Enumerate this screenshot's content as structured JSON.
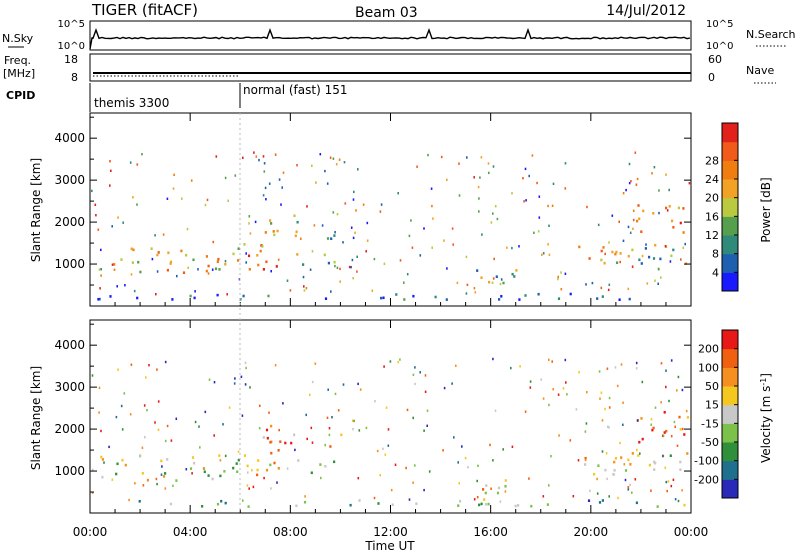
{
  "header": {
    "radar": "TIGER (fitACF)",
    "beam": "Beam 03",
    "date": "14/Jul/2012"
  },
  "top_panels": {
    "nsky": {
      "label": "N.Sky",
      "ticks": [
        "10^5",
        "10^0"
      ]
    },
    "nsearch": {
      "label": "N.Search",
      "ticks": [
        "10^5",
        "10^0"
      ]
    },
    "freq": {
      "label": "Freq.",
      "unit": "[MHz]",
      "ticks": [
        "18",
        "8"
      ]
    },
    "nave": {
      "label": "Nave",
      "ticks": [
        "60",
        "0"
      ]
    },
    "cpid": {
      "label": "CPID",
      "segments": [
        {
          "start_hr": 0,
          "end_hr": 6,
          "text": "themis 3300"
        },
        {
          "start_hr": 6,
          "end_hr": 24,
          "text": "normal (fast) 151"
        }
      ]
    }
  },
  "x_axis": {
    "title": "Time UT",
    "ticks": [
      "00:00",
      "04:00",
      "08:00",
      "12:00",
      "16:00",
      "20:00",
      "00:00"
    ]
  },
  "chart_data": [
    {
      "type": "heatmap",
      "title": "",
      "xlabel": "",
      "ylabel": "Slant Range [km]",
      "xlim_hr": [
        0,
        24
      ],
      "ylim": [
        0,
        4600
      ],
      "yticks": [
        "1000",
        "2000",
        "3000",
        "4000"
      ],
      "colorbar": {
        "label": "Power [dB]",
        "ticks": [
          "4",
          "8",
          "12",
          "16",
          "20",
          "24",
          "28"
        ],
        "colors": [
          "#1a1aff",
          "#1f5fb0",
          "#2f8a7a",
          "#56a04d",
          "#b9c940",
          "#f2a326",
          "#f07d10",
          "#f05a1a",
          "#e2211c"
        ]
      },
      "regions": [
        {
          "t0": 0.4,
          "t1": 6.1,
          "r0": 800,
          "r1": 1420,
          "level": 0.62
        },
        {
          "t0": 6.1,
          "t1": 7.6,
          "r0": 900,
          "r1": 1900,
          "level": 0.78
        },
        {
          "t0": 7.0,
          "t1": 8.4,
          "r0": 1600,
          "r1": 2300,
          "level": 0.45
        },
        {
          "t0": 8.2,
          "t1": 9.9,
          "r0": 950,
          "r1": 1300,
          "level": 0.35
        },
        {
          "t0": 9.3,
          "t1": 10.0,
          "r0": 1500,
          "r1": 2000,
          "level": 0.3
        },
        {
          "t0": 15.4,
          "t1": 17.0,
          "r0": 300,
          "r1": 900,
          "level": 0.4
        },
        {
          "t0": 19.2,
          "t1": 21.0,
          "r0": 950,
          "r1": 1450,
          "level": 0.65
        },
        {
          "t0": 20.8,
          "t1": 24.0,
          "r0": 900,
          "r1": 1500,
          "level": 0.4
        },
        {
          "t0": 21.8,
          "t1": 24.0,
          "r0": 1700,
          "r1": 2450,
          "level": 0.72
        },
        {
          "t0": 0.0,
          "t1": 24.0,
          "r0": 180,
          "r1": 330,
          "level": 0.15
        }
      ]
    },
    {
      "type": "heatmap",
      "title": "",
      "xlabel": "",
      "ylabel": "Slant Range [km]",
      "xlim_hr": [
        0,
        24
      ],
      "ylim": [
        0,
        4600
      ],
      "yticks": [
        "1000",
        "2000",
        "3000",
        "4000"
      ],
      "colorbar": {
        "label": "Velocity [m s",
        "label_sup": "-1",
        "label_end": "]",
        "ticks": [
          "200",
          "100",
          "50",
          "15",
          "-15",
          "-50",
          "-100",
          "-200"
        ],
        "colors": [
          "#2a2ab8",
          "#1f6f8f",
          "#2f8f3a",
          "#7cc24a",
          "#c8c8c8",
          "#f5c820",
          "#f59020",
          "#f06010",
          "#e81818"
        ]
      },
      "regions": [
        {
          "t0": 0.4,
          "t1": 6.1,
          "r0": 800,
          "r1": 1420,
          "level": 0.45
        },
        {
          "t0": 6.1,
          "t1": 7.6,
          "r0": 900,
          "r1": 1900,
          "level": 0.62
        },
        {
          "t0": 7.0,
          "t1": 8.4,
          "r0": 1500,
          "r1": 2200,
          "level": 0.7
        },
        {
          "t0": 8.2,
          "t1": 9.9,
          "r0": 950,
          "r1": 1300,
          "level": 0.45
        },
        {
          "t0": 9.3,
          "t1": 10.0,
          "r0": 1600,
          "r1": 2000,
          "level": 0.85
        },
        {
          "t0": 15.4,
          "t1": 17.0,
          "r0": 300,
          "r1": 900,
          "level": 0.6
        },
        {
          "t0": 19.2,
          "t1": 21.0,
          "r0": 950,
          "r1": 1450,
          "level": 0.6
        },
        {
          "t0": 20.8,
          "t1": 24.0,
          "r0": 900,
          "r1": 1500,
          "level": 0.52
        },
        {
          "t0": 21.8,
          "t1": 24.0,
          "r0": 1700,
          "r1": 2450,
          "level": 0.82
        },
        {
          "t0": 0.0,
          "t1": 24.0,
          "r0": 180,
          "r1": 330,
          "level": 0.35
        }
      ]
    }
  ]
}
